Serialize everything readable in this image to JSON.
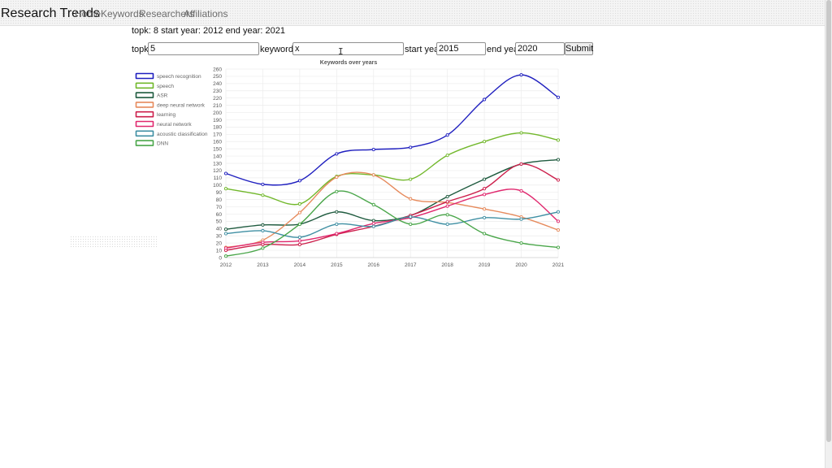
{
  "navbar": {
    "brand": "Research Trends",
    "links": [
      "Home",
      "Keywords",
      "Researchers",
      "Affiliations"
    ]
  },
  "status": "topk: 8 start year: 2012 end year: 2021",
  "form": {
    "topk_label": "topk:",
    "topk_value": "5",
    "keywords_label": "keywords:",
    "keywords_value": "x",
    "start_label": "start year:",
    "start_value": "2015",
    "end_label": "end year:",
    "end_value": "2020",
    "submit_label": "Submit"
  },
  "chart_data": {
    "type": "line",
    "title": "Keywords over years",
    "x": [
      2012,
      2013,
      2014,
      2015,
      2016,
      2017,
      2018,
      2019,
      2020,
      2021
    ],
    "ylim": [
      0,
      260
    ],
    "ytick_step": 10,
    "grid": true,
    "legend_position": "left",
    "series": [
      {
        "name": "speech recognition",
        "color": "#1f1fbf",
        "values": [
          116,
          101,
          106,
          143,
          149,
          152,
          169,
          218,
          252,
          221
        ]
      },
      {
        "name": "speech",
        "color": "#72b82c",
        "values": [
          95,
          86,
          74,
          112,
          114,
          108,
          141,
          160,
          172,
          162
        ]
      },
      {
        "name": "ASR",
        "color": "#1f5b3f",
        "values": [
          39,
          45,
          46,
          63,
          51,
          58,
          84,
          108,
          129,
          135
        ]
      },
      {
        "name": "deep neural network",
        "color": "#e68a5c",
        "values": [
          14,
          24,
          62,
          111,
          114,
          81,
          76,
          67,
          56,
          38
        ]
      },
      {
        "name": "learning",
        "color": "#cc1f4b",
        "values": [
          10,
          18,
          18,
          32,
          43,
          58,
          77,
          95,
          129,
          107
        ]
      },
      {
        "name": "neural network",
        "color": "#e0286e",
        "values": [
          13,
          21,
          23,
          33,
          47,
          55,
          71,
          87,
          92,
          50
        ]
      },
      {
        "name": "acoustic classification",
        "color": "#3f8fa3",
        "values": [
          33,
          37,
          28,
          46,
          43,
          56,
          46,
          55,
          53,
          63
        ]
      },
      {
        "name": "DNN",
        "color": "#4aa64a",
        "values": [
          2,
          13,
          46,
          91,
          73,
          46,
          59,
          33,
          20,
          14
        ]
      }
    ]
  }
}
